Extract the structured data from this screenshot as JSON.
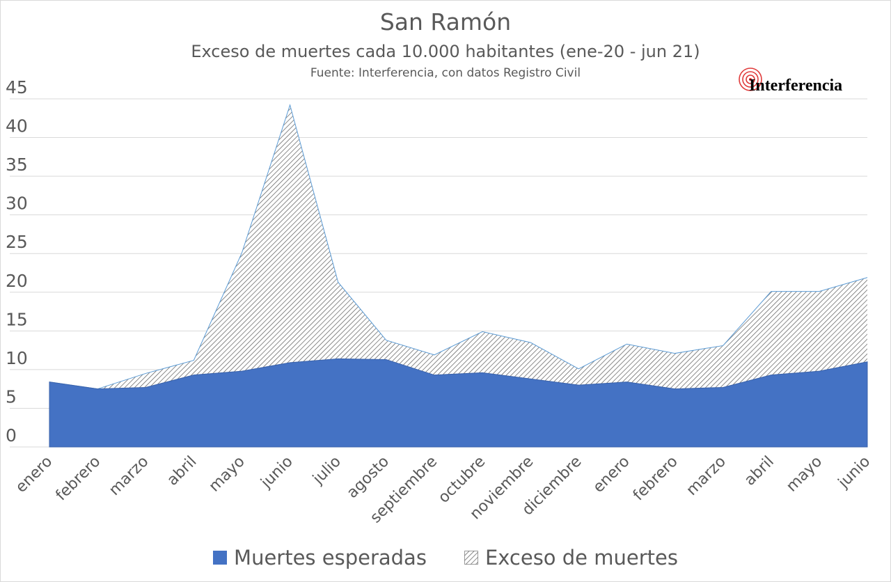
{
  "chart_data": {
    "type": "area",
    "stacked": true,
    "title": "San Ramón",
    "subtitle": "Exceso de muertes cada 10.000 habitantes (ene-20  - jun 21)",
    "source": "Fuente: Interferencia, con datos Registro Civil",
    "categories": [
      "enero",
      "febrero",
      "marzo",
      "abril",
      "mayo",
      "junio",
      "julio",
      "agosto",
      "septiembre",
      "octubre",
      "noviembre",
      "diciembre",
      "enero",
      "febrero",
      "marzo",
      "abril",
      "mayo",
      "junio"
    ],
    "series": [
      {
        "name": "Muertes esperadas",
        "color": "#4472C4",
        "values": [
          8.4,
          7.5,
          7.7,
          9.3,
          9.8,
          10.9,
          11.4,
          11.3,
          9.3,
          9.6,
          8.8,
          8.0,
          8.4,
          7.5,
          7.7,
          9.3,
          9.8,
          11.0
        ]
      },
      {
        "name": "Exceso de muertes",
        "color": "#bfbfbf",
        "pattern": "diagonal-hatch",
        "values": [
          0.0,
          0.0,
          1.8,
          1.9,
          15.3,
          33.3,
          9.9,
          2.5,
          2.6,
          5.3,
          4.7,
          2.1,
          4.9,
          4.6,
          5.4,
          10.8,
          10.3,
          10.9
        ]
      }
    ],
    "ylim": [
      0,
      45
    ],
    "yticks": [
      "0",
      "5",
      "10",
      "15",
      "20",
      "25",
      "30",
      "35",
      "40",
      "45"
    ],
    "grid": true,
    "legend": "bottom"
  },
  "logo": {
    "text": "Interferencia"
  }
}
